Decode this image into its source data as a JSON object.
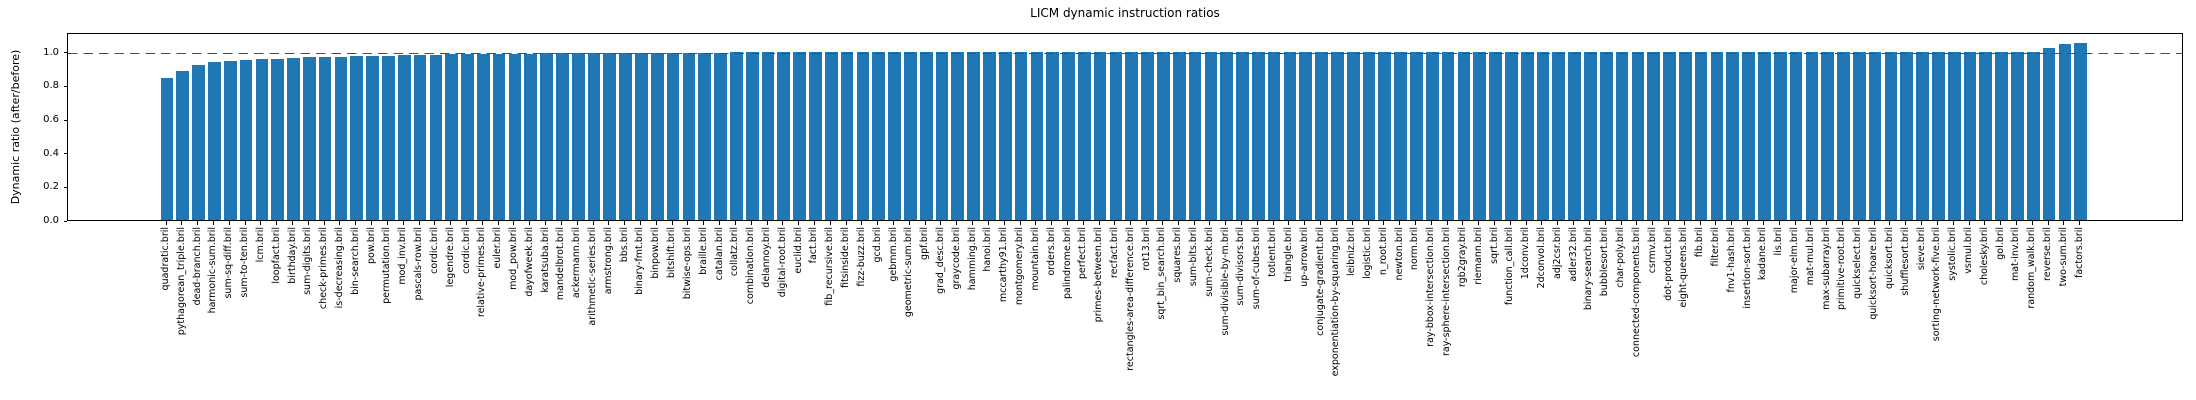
{
  "figure": {
    "title": "LICM dynamic instruction ratios",
    "ylabel": "Dynamic ratio (after/before)"
  },
  "chart_data": {
    "type": "bar",
    "title": "LICM dynamic instruction ratios",
    "xlabel": "",
    "ylabel": "Dynamic ratio (after/before)",
    "grid": false,
    "legend": null,
    "ylim": [
      0,
      1.117
    ],
    "yticks": [
      0.0,
      0.2,
      0.4,
      0.6,
      0.8,
      1.0
    ],
    "bar_color": "#1f77b4",
    "reference_line": {
      "y": 1.0,
      "color": "#ff0000",
      "style": "dashed"
    },
    "categories": [
      "quadratic.bril",
      "pythagorean_triple.bril",
      "dead-branch.bril",
      "harmonic-sum.bril",
      "sum-sq-diff.bril",
      "sum-to-ten.bril",
      "lcm.bril",
      "loopfact.bril",
      "birthday.bril",
      "sum-digits.bril",
      "check-primes.bril",
      "is-decreasing.bril",
      "bin-search.bril",
      "pow.bril",
      "permutation.bril",
      "mod_inv.bril",
      "pascals-row.bril",
      "cordic.bril",
      "legendre.bril",
      "cordic.bril",
      "relative-primes.bril",
      "euler.bril",
      "mod_pow.bril",
      "dayofweek.bril",
      "karatsuba.bril",
      "mandelbrot.bril",
      "ackermann.bril",
      "arithmetic-series.bril",
      "armstrong.bril",
      "bbs.bril",
      "binary-fmt.bril",
      "binpow.bril",
      "bitshift.bril",
      "bitwise-ops.bril",
      "braille.bril",
      "catalan.bril",
      "collatz.bril",
      "combination.bril",
      "delannoy.bril",
      "digital-root.bril",
      "euclid.bril",
      "fact.bril",
      "fib_recursive.bril",
      "fitsinside.bril",
      "fizz-buzz.bril",
      "gcd.bril",
      "gebmm.bril",
      "geometric-sum.bril",
      "gpf.bril",
      "grad_desc.bril",
      "graycode.bril",
      "hamming.bril",
      "hanoi.bril",
      "mccarthy91.bril",
      "montgomery.bril",
      "mountain.bril",
      "orders.bril",
      "palindrome.bril",
      "perfect.bril",
      "primes-between.bril",
      "recfact.bril",
      "rectangles-area-difference.bril",
      "rot13.bril",
      "sqrt_bin_search.bril",
      "squares.bril",
      "sum-bits.bril",
      "sum-check.bril",
      "sum-divisible-by-m.bril",
      "sum-divisors.bril",
      "sum-of-cubes.bril",
      "totient.bril",
      "triangle.bril",
      "up-arrow.bril",
      "conjugate-gradient.bril",
      "exponentiation-by-squaring.bril",
      "leibniz.bril",
      "logistic.bril",
      "n_root.bril",
      "newton.bril",
      "norm.bril",
      "ray-bbox-intersection.bril",
      "ray-sphere-intersection.bril",
      "rgb2gray.bril",
      "riemann.bril",
      "sqrt.bril",
      "function_call.bril",
      "1dconv.bril",
      "2dconvol.bril",
      "adj2csr.bril",
      "adler32.bril",
      "binary-search.bril",
      "bubblesort.bril",
      "char-poly.bril",
      "connected-components.bril",
      "csrmv.bril",
      "dot-product.bril",
      "eight-queens.bril",
      "fib.bril",
      "filter.bril",
      "fnv1-hash.bril",
      "insertion-sort.bril",
      "kadane.bril",
      "lis.bril",
      "major-elm.bril",
      "mat-mul.bril",
      "max-subarray.bril",
      "primitive-root.bril",
      "quickselect.bril",
      "quicksort-hoare.bril",
      "quicksort.bril",
      "shufflesort.bril",
      "sieve.bril",
      "sorting-network-five.bril",
      "systolic.bril",
      "vsmul.bril",
      "cholesky.bril",
      "gol.bril",
      "mat-inv.bril",
      "random_walk.bril",
      "reverse.bril",
      "two-sum.bril",
      "factors.bril"
    ],
    "values": [
      0.845,
      0.885,
      0.924,
      0.936,
      0.943,
      0.949,
      0.954,
      0.959,
      0.964,
      0.967,
      0.969,
      0.971,
      0.973,
      0.975,
      0.977,
      0.979,
      0.981,
      0.982,
      0.984,
      0.985,
      0.986,
      0.987,
      0.988,
      0.989,
      0.99,
      0.991,
      0.992,
      0.992,
      0.993,
      0.993,
      0.994,
      0.994,
      0.994,
      0.995,
      0.995,
      0.995,
      0.996,
      0.996,
      0.996,
      0.996,
      0.997,
      0.997,
      0.997,
      0.997,
      0.997,
      0.998,
      0.998,
      0.998,
      0.998,
      0.998,
      0.998,
      0.998,
      0.999,
      0.999,
      0.999,
      0.999,
      0.999,
      0.999,
      0.999,
      0.999,
      0.999,
      0.999,
      0.999,
      0.999,
      0.999,
      0.999,
      0.999,
      0.999,
      0.999,
      0.999,
      1.0,
      1.0,
      1.0,
      1.0,
      1.0,
      1.0,
      1.0,
      1.0,
      1.0,
      1.0,
      1.0,
      1.0,
      1.0,
      1.0,
      1.0,
      1.0,
      1.0,
      1.0,
      1.0,
      1.0,
      1.0,
      1.0,
      1.0,
      1.0,
      1.0,
      1.0,
      1.0,
      1.0,
      1.0,
      1.0,
      1.0,
      1.0,
      1.0,
      1.0,
      1.0,
      1.0,
      1.0,
      1.0,
      1.0,
      1.0,
      1.0,
      1.0,
      1.0,
      1.0,
      1.0,
      1.0,
      1.0,
      1.0,
      1.0,
      1.02,
      1.048,
      1.053
    ]
  }
}
